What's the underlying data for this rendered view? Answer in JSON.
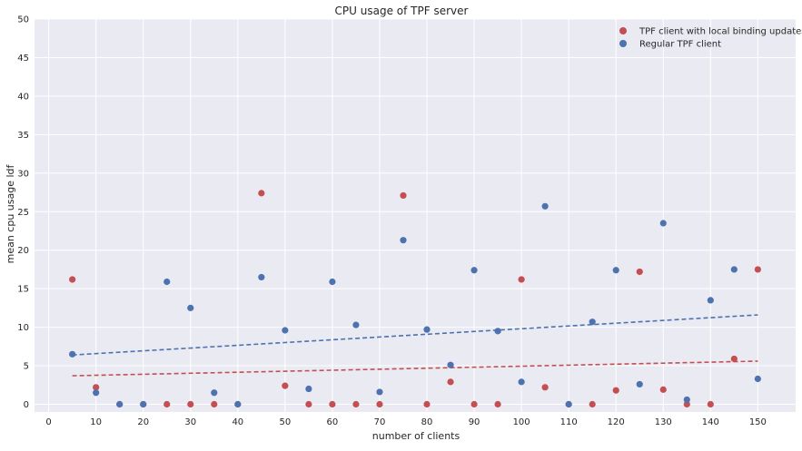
{
  "colors": {
    "plot_bg": "#EAEAF2",
    "grid": "#FFFFFF",
    "red": "#C44E52",
    "blue": "#4C72B0",
    "text": "#262626"
  },
  "chart_data": {
    "type": "scatter",
    "title": "CPU usage of TPF server",
    "xlabel": "number of clients",
    "ylabel": "mean cpu usage ldf",
    "xlim": [
      -3,
      158
    ],
    "ylim": [
      -1,
      50
    ],
    "xticks": [
      0,
      10,
      20,
      30,
      40,
      50,
      60,
      70,
      80,
      90,
      100,
      110,
      120,
      130,
      140,
      150
    ],
    "yticks": [
      0,
      5,
      10,
      15,
      20,
      25,
      30,
      35,
      40,
      45,
      50
    ],
    "grid": true,
    "legend_position": "top-right",
    "x": [
      5,
      10,
      15,
      20,
      25,
      30,
      35,
      40,
      45,
      50,
      55,
      60,
      65,
      70,
      75,
      80,
      85,
      90,
      95,
      100,
      105,
      110,
      115,
      120,
      125,
      130,
      135,
      140,
      145,
      150
    ],
    "series": [
      {
        "name": "TPF client with local binding updates",
        "color": "#C44E52",
        "values": [
          16.2,
          2.2,
          0,
          0,
          0,
          0,
          0,
          0,
          27.4,
          2.4,
          0,
          0,
          0,
          0,
          27.1,
          0,
          2.9,
          0,
          0,
          16.2,
          2.2,
          0,
          0,
          1.8,
          17.2,
          1.9,
          0,
          0,
          5.9,
          17.5
        ],
        "trend": {
          "x": [
            5,
            150
          ],
          "y": [
            3.7,
            5.6
          ]
        }
      },
      {
        "name": "Regular TPF client",
        "color": "#4C72B0",
        "values": [
          6.5,
          1.5,
          0,
          0,
          15.9,
          12.5,
          1.5,
          0,
          16.5,
          9.6,
          2.0,
          15.9,
          10.3,
          1.6,
          21.3,
          9.7,
          5.1,
          17.4,
          9.5,
          2.9,
          25.7,
          0,
          10.7,
          17.4,
          2.6,
          23.5,
          0.6,
          13.5,
          17.5,
          3.3
        ],
        "trend": {
          "x": [
            5,
            150
          ],
          "y": [
            6.4,
            11.6
          ]
        }
      }
    ]
  }
}
